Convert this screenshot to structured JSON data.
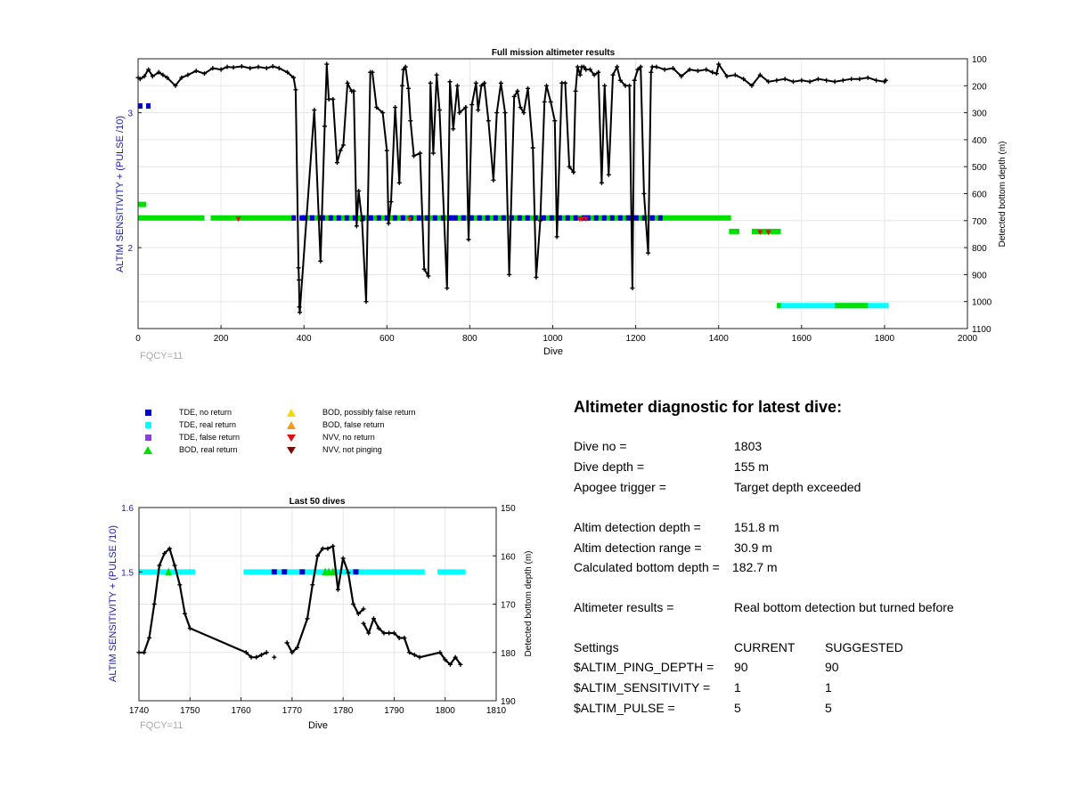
{
  "figure": {
    "top_chart": {
      "title": "Full mission altimeter results",
      "xlabel": "Dive",
      "ylabel_left": "ALTIM SENSITIVITY + (PULSE /10)",
      "ylabel_right": "Detected bottom depth (m)",
      "footnote": "FQCY=11",
      "x_ticks": [
        "0",
        "200",
        "400",
        "600",
        "800",
        "1000",
        "1200",
        "1400",
        "1600",
        "1800",
        "2000"
      ],
      "y_left_ticks": [
        "2",
        "3"
      ],
      "y_right_ticks": [
        "100",
        "200",
        "300",
        "400",
        "500",
        "600",
        "700",
        "800",
        "900",
        "1000",
        "1100"
      ]
    },
    "bottom_chart": {
      "title": "Last 50 dives",
      "xlabel": "Dive",
      "ylabel_left": "ALTIM SENSITIVITY + (PULSE /10)",
      "ylabel_right": "Detected bottom depth (m)",
      "footnote": "FQCY=11",
      "x_ticks": [
        "1740",
        "1750",
        "1760",
        "1770",
        "1780",
        "1790",
        "1800",
        "1810"
      ],
      "y_left_ticks": [
        "1.6",
        "1.5"
      ],
      "y_right_ticks": [
        "150",
        "160",
        "170",
        "180",
        "190"
      ]
    }
  },
  "legend": {
    "items": [
      {
        "label": "TDE, no return",
        "color": "#0000cc",
        "shape": "square"
      },
      {
        "label": "TDE, real return",
        "color": "#00ffff",
        "shape": "square"
      },
      {
        "label": "TDE, false return",
        "color": "#8a3fd6",
        "shape": "square"
      },
      {
        "label": "BOD, real return",
        "color": "#00e000",
        "shape": "triangle-up"
      },
      {
        "label": "BOD, possibly false return",
        "color": "#f5d800",
        "shape": "triangle-up"
      },
      {
        "label": "BOD, false return",
        "color": "#f59b1a",
        "shape": "triangle-up"
      },
      {
        "label": "NVV, no return",
        "color": "#e01010",
        "shape": "triangle-down"
      },
      {
        "label": "NVV, not pinging",
        "color": "#7a0a0a",
        "shape": "triangle-down"
      }
    ]
  },
  "diagnostic": {
    "title": "Altimeter diagnostic for latest dive:",
    "dive_no_label": "Dive no =",
    "dive_no": "1803",
    "dive_depth_label": "Dive depth =",
    "dive_depth": "155 m",
    "apogee_label": "Apogee trigger =",
    "apogee": "Target depth exceeded",
    "detect_depth_label": "Altim detection depth =",
    "detect_depth": "151.8 m",
    "detect_range_label": "Altim detection range =",
    "detect_range": "30.9 m",
    "calc_bottom_label": "Calculated bottom depth =",
    "calc_bottom": "182.7 m",
    "results_label": "Altimeter results =",
    "results": "Real bottom detection but turned before",
    "settings_label": "Settings",
    "current_label": "CURRENT",
    "suggested_label": "SUGGESTED",
    "settings": [
      {
        "name": "$ALTIM_PING_DEPTH =",
        "current": "90",
        "suggested": "90"
      },
      {
        "name": "$ALTIM_SENSITIVITY =",
        "current": "1",
        "suggested": "1"
      },
      {
        "name": "$ALTIM_PULSE =",
        "current": "5",
        "suggested": "5"
      }
    ]
  },
  "chart_data": [
    {
      "type": "scatter",
      "title": "Full mission altimeter results",
      "xlabel": "Dive",
      "ylabel": "ALTIM SENSITIVITY + (PULSE /10)",
      "y2label": "Detected bottom depth (m)",
      "xlim": [
        0,
        2000
      ],
      "ylim_left": [
        1.4,
        3.4
      ],
      "ylim_right": [
        1100,
        100
      ],
      "y_right_reversed": true,
      "grid": true,
      "series": [
        {
          "name": "Detected bottom depth (m)",
          "axis": "right",
          "style": "line-markers",
          "x": [
            0,
            5,
            15,
            25,
            35,
            50,
            60,
            70,
            90,
            105,
            120,
            140,
            160,
            180,
            200,
            215,
            230,
            250,
            270,
            290,
            310,
            325,
            340,
            360,
            375,
            380,
            387,
            388,
            389,
            390,
            425,
            440,
            450,
            455,
            460,
            470,
            480,
            488,
            495,
            505,
            515,
            520,
            527,
            532,
            540,
            550,
            560,
            565,
            575,
            590,
            600,
            604,
            610,
            620,
            630,
            637,
            640,
            645,
            652,
            657,
            665,
            680,
            690,
            700,
            705,
            712,
            720,
            727,
            745,
            752,
            760,
            770,
            775,
            790,
            797,
            805,
            815,
            820,
            828,
            835,
            845,
            857,
            865,
            875,
            885,
            895,
            907,
            915,
            922,
            930,
            940,
            952,
            960,
            970,
            980,
            985,
            995,
            1005,
            1010,
            1022,
            1030,
            1040,
            1050,
            1055,
            1060,
            1066,
            1070,
            1075,
            1080,
            1090,
            1100,
            1110,
            1118,
            1125,
            1135,
            1145,
            1155,
            1163,
            1175,
            1185,
            1192,
            1197,
            1205,
            1212,
            1220,
            1230,
            1237,
            1240,
            1250,
            1270,
            1290,
            1310,
            1330,
            1350,
            1370,
            1385,
            1395,
            1400,
            1420,
            1440,
            1460,
            1480,
            1500,
            1520,
            1540,
            1560,
            1580,
            1600,
            1620,
            1640,
            1660,
            1680,
            1700,
            1720,
            1740,
            1760,
            1780,
            1800,
            1803
          ],
          "y": [
            170,
            175,
            165,
            140,
            165,
            150,
            160,
            170,
            200,
            170,
            160,
            145,
            155,
            135,
            140,
            130,
            132,
            128,
            135,
            130,
            135,
            128,
            135,
            150,
            170,
            215,
            875,
            920,
            1020,
            1040,
            290,
            850,
            350,
            120,
            250,
            250,
            485,
            440,
            420,
            190,
            220,
            220,
            720,
            590,
            700,
            1000,
            150,
            150,
            280,
            300,
            440,
            710,
            630,
            280,
            560,
            200,
            140,
            130,
            210,
            330,
            460,
            450,
            880,
            905,
            190,
            450,
            160,
            290,
            950,
            185,
            360,
            200,
            300,
            280,
            770,
            270,
            190,
            290,
            200,
            190,
            330,
            550,
            300,
            190,
            300,
            900,
            240,
            220,
            280,
            300,
            210,
            430,
            910,
            700,
            260,
            200,
            260,
            330,
            760,
            190,
            190,
            500,
            520,
            220,
            130,
            160,
            130,
            130,
            140,
            140,
            160,
            150,
            560,
            200,
            530,
            160,
            130,
            180,
            200,
            200,
            950,
            180,
            140,
            130,
            600,
            820,
            150,
            130,
            130,
            140,
            135,
            165,
            140,
            145,
            140,
            150,
            155,
            120,
            165,
            160,
            175,
            200,
            160,
            185,
            180,
            175,
            185,
            180,
            185,
            175,
            180,
            185,
            180,
            175,
            175,
            170,
            180,
            185,
            180
          ]
        },
        {
          "name": "BOD, real return",
          "axis": "left",
          "style": "band",
          "segments": [
            [
              0,
              2.21,
              2.23
            ],
            [
              5,
              2.31,
              2.35
            ],
            [
              0,
              2.21,
              2.23
            ],
            [
              165,
              2.21,
              2.23
            ],
            [
              375,
              2.21,
              2.23
            ],
            [
              390,
              2.21,
              2.23
            ],
            [
              1060,
              2.21,
              2.23
            ],
            [
              1425,
              2.21,
              2.23
            ],
            [
              1430,
              2.11,
              2.15
            ],
            [
              1550,
              1.56,
              1.58
            ],
            [
              1755,
              1.56,
              1.58
            ]
          ]
        }
      ],
      "markers": {
        "TDE_no_return_bands": [
          [
            0,
            20,
            3.05
          ],
          [
            370,
            390,
            2.22
          ],
          [
            395,
            440,
            2.22
          ],
          [
            440,
            760,
            2.22
          ],
          [
            760,
            1080,
            2.22
          ],
          [
            1080,
            1260,
            2.22
          ]
        ],
        "BOD_real_return_bands": [
          [
            0,
            20,
            2.32
          ],
          [
            0,
            160,
            2.22
          ],
          [
            175,
            375,
            2.22
          ],
          [
            395,
            1430,
            2.22
          ],
          [
            1425,
            1450,
            2.12
          ],
          [
            1480,
            1550,
            2.12
          ],
          [
            1540,
            1550,
            1.57
          ],
          [
            1680,
            1760,
            1.57
          ]
        ],
        "TDE_real_return_bands": [
          [
            1545,
            1810,
            1.57
          ]
        ],
        "NVV_no_return_points": [
          [
            242,
            2.21
          ],
          [
            655,
            2.21
          ],
          [
            1065,
            2.21
          ],
          [
            1070,
            2.21
          ],
          [
            1080,
            2.21
          ],
          [
            1500,
            2.11
          ],
          [
            1520,
            2.11
          ]
        ]
      }
    },
    {
      "type": "scatter",
      "title": "Last 50 dives",
      "xlabel": "Dive",
      "ylabel": "ALTIM SENSITIVITY + (PULSE /10)",
      "y2label": "Detected bottom depth (m)",
      "xlim": [
        1740,
        1810
      ],
      "ylim_left": [
        1.3,
        1.6
      ],
      "ylim_right": [
        190,
        150
      ],
      "y_right_reversed": true,
      "grid": true,
      "series": [
        {
          "name": "Detected bottom depth (m)",
          "axis": "right",
          "style": "line-markers",
          "x": [
            1740,
            1741,
            1742,
            1743,
            1744,
            1745,
            1746,
            1747,
            1748,
            1749,
            1750,
            1761,
            1762,
            1763,
            1764,
            1765
          ],
          "y": [
            180,
            180,
            177,
            170,
            162,
            159.5,
            158.5,
            162,
            166,
            172,
            175,
            180,
            181,
            181,
            180.5,
            180
          ]
        },
        {
          "name": "Detected bottom depth (m) 2",
          "axis": "right",
          "style": "line-markers",
          "x": [
            1769,
            1770,
            1771,
            1773,
            1774,
            1775,
            1776,
            1777,
            1778,
            1779,
            1780,
            1781,
            1782,
            1783,
            1784
          ],
          "y": [
            178,
            180,
            179,
            173,
            166,
            160,
            158.5,
            158.5,
            158,
            167,
            160.5,
            163.5,
            170,
            172,
            171
          ],
          "break_before": true
        },
        {
          "name": "Detected bottom depth (m) 3",
          "axis": "right",
          "style": "line-markers",
          "x": [
            1784,
            1785,
            1786,
            1787,
            1788,
            1789,
            1790,
            1791,
            1792,
            1793,
            1794,
            1795,
            1799,
            1800,
            1801,
            1802,
            1803
          ],
          "y": [
            174,
            176,
            173,
            175,
            176,
            176,
            176,
            177,
            177,
            180,
            180.5,
            181,
            180,
            181.5,
            182.5,
            181,
            182.5
          ],
          "break_before": true
        },
        {
          "name": "isolated points",
          "axis": "right",
          "style": "markers",
          "x": [
            1766.5,
            1769
          ],
          "y": [
            181,
            178
          ]
        }
      ],
      "markers": {
        "TDE_real_return_bands": [
          [
            1740,
            1751,
            1.5
          ],
          [
            1760.5,
            1775,
            1.5
          ],
          [
            1775,
            1796,
            1.5
          ],
          [
            1798.5,
            1804,
            1.5
          ]
        ],
        "TDE_no_return_points": [
          [
            1766.5,
            1.5
          ],
          [
            1768.5,
            1.5
          ],
          [
            1772,
            1.5
          ],
          [
            1782.5,
            1.5
          ]
        ],
        "BOD_real_return_points": [
          [
            1745.8,
            1.5
          ],
          [
            1776.5,
            1.5
          ],
          [
            1777.2,
            1.5
          ],
          [
            1778,
            1.5
          ]
        ]
      }
    }
  ]
}
